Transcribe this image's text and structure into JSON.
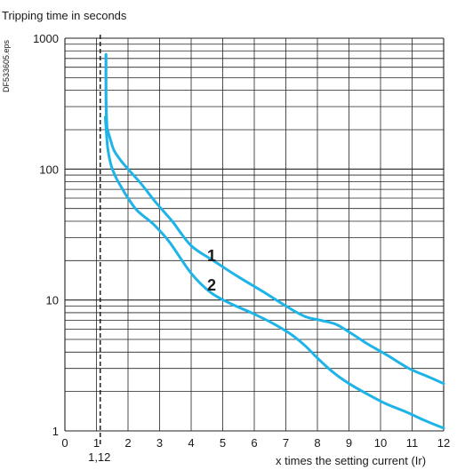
{
  "chart_data": {
    "type": "line",
    "title": "",
    "ylabel": "Tripping time in seconds",
    "xlabel": "x times the setting current (Ir)",
    "side_label": "DF533605.eps",
    "xlim": [
      0,
      12
    ],
    "ylim": [
      1,
      1000
    ],
    "yscale": "log",
    "grid": true,
    "x_ticks": [
      "0",
      "1",
      "2",
      "3",
      "4",
      "5",
      "6",
      "7",
      "8",
      "9",
      "10",
      "11",
      "12"
    ],
    "y_ticks": [
      "1",
      "10",
      "100",
      "1000"
    ],
    "reference_line": {
      "x": 1.12,
      "label": "1,12",
      "style": "dashed"
    },
    "curve_color": "#1fb4e8",
    "series": [
      {
        "name": "1",
        "x": [
          1.3,
          1.42,
          1.55,
          1.75,
          2.0,
          2.4,
          2.9,
          3.4,
          4.0,
          4.7,
          5.5,
          6.3,
          7.0,
          7.6,
          8.1,
          8.6,
          9.1,
          9.6,
          10.2,
          10.9,
          11.5,
          12.0
        ],
        "y": [
          220,
          175,
          140,
          118,
          100,
          78,
          55,
          40,
          26,
          20,
          15,
          11.5,
          9,
          7.5,
          7,
          6.5,
          5.5,
          4.6,
          3.8,
          3.0,
          2.6,
          2.3
        ]
      },
      {
        "name": "2",
        "x": [
          1.28,
          1.35,
          1.45,
          1.6,
          1.8,
          2.0,
          2.3,
          2.8,
          3.3,
          4.0,
          4.6,
          5.2,
          5.9,
          6.5,
          7.1,
          7.6,
          8.0,
          8.5,
          9.0,
          9.6,
          10.2,
          10.8,
          11.4,
          12.0
        ],
        "y": [
          250,
          150,
          110,
          88,
          72,
          60,
          48,
          38,
          28,
          16,
          11.5,
          9.5,
          8,
          6.8,
          5.6,
          4.5,
          3.6,
          2.8,
          2.3,
          1.9,
          1.6,
          1.4,
          1.2,
          1.05
        ]
      }
    ],
    "steep_segment": {
      "x": [
        1.3,
        1.3,
        1.31,
        1.33
      ],
      "y": [
        750,
        400,
        280,
        210
      ]
    }
  }
}
